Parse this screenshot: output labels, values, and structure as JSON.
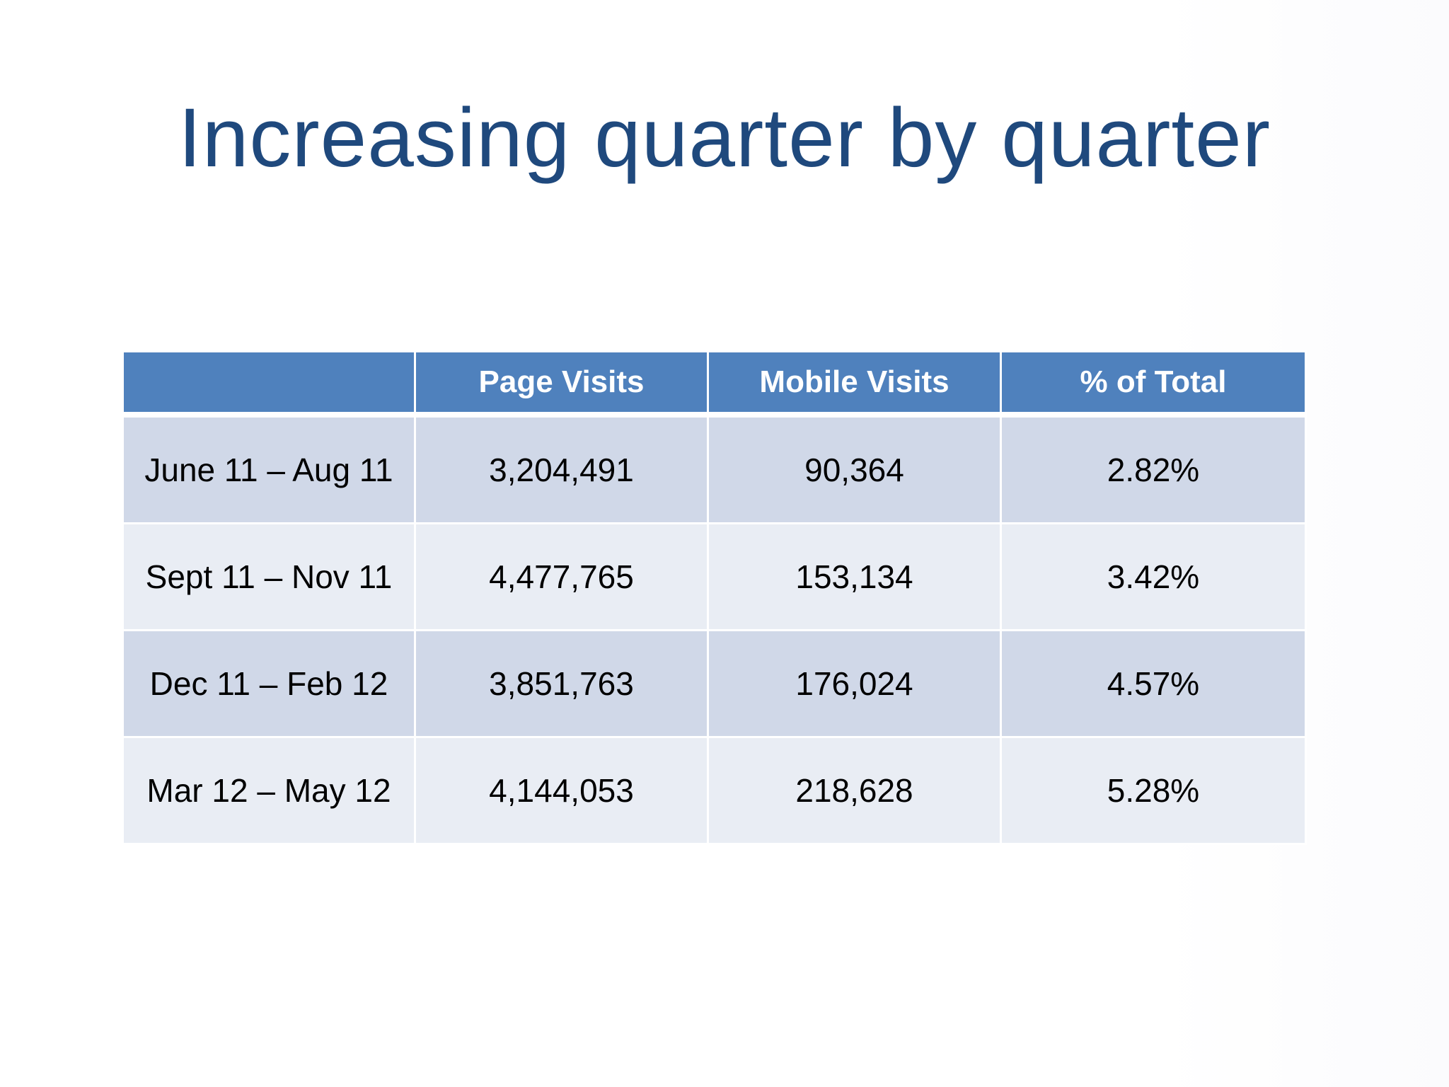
{
  "slide": {
    "title": "Increasing quarter by quarter"
  },
  "table": {
    "headers": [
      "",
      "Page Visits",
      "Mobile Visits",
      "% of Total"
    ],
    "rows": [
      [
        "June 11 – Aug 11",
        "3,204,491",
        "90,364",
        "2.82%"
      ],
      [
        "Sept 11 – Nov 11",
        "4,477,765",
        "153,134",
        "3.42%"
      ],
      [
        "Dec 11 – Feb 12",
        "3,851,763",
        "176,024",
        "4.57%"
      ],
      [
        "Mar 12 – May 12",
        "4,144,053",
        "218,628",
        "5.28%"
      ]
    ]
  },
  "colors": {
    "title": "#1f497d",
    "header_fill": "#4f81bd",
    "row_band_dark": "#d0d8e8",
    "row_band_light": "#e9edf4"
  }
}
